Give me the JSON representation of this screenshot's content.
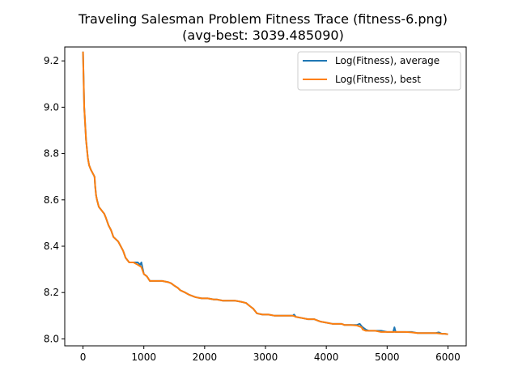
{
  "chart_data": {
    "type": "line",
    "title": "Traveling Salesman Problem Fitness Trace (fitness-6.png)",
    "subtitle": "(avg-best: 3039.485090)",
    "xlabel": "",
    "ylabel": "",
    "xlim": [
      -300,
      6300
    ],
    "ylim": [
      7.97,
      9.26
    ],
    "x_ticks": [
      0,
      1000,
      2000,
      3000,
      4000,
      5000,
      6000
    ],
    "x_tick_labels": [
      "0",
      "1000",
      "2000",
      "3000",
      "4000",
      "5000",
      "6000"
    ],
    "y_ticks": [
      8.0,
      8.2,
      8.4,
      8.6,
      8.8,
      9.0,
      9.2
    ],
    "y_tick_labels": [
      "8.0",
      "8.2",
      "8.4",
      "8.6",
      "8.8",
      "9.0",
      "9.2"
    ],
    "grid": false,
    "legend_position": "top-right",
    "series": [
      {
        "name": "Log(Fitness), average",
        "color": "#1f77b4",
        "x": [
          0,
          20,
          50,
          80,
          100,
          130,
          150,
          170,
          190,
          200,
          215,
          230,
          260,
          290,
          320,
          350,
          380,
          420,
          460,
          500,
          540,
          580,
          620,
          660,
          700,
          760,
          830,
          900,
          940,
          960,
          1000,
          1050,
          1100,
          1200,
          1300,
          1400,
          1450,
          1500,
          1560,
          1600,
          1680,
          1750,
          1850,
          1950,
          2050,
          2150,
          2200,
          2300,
          2400,
          2500,
          2600,
          2680,
          2750,
          2800,
          2860,
          2950,
          3050,
          3150,
          3250,
          3350,
          3450,
          3470,
          3500,
          3600,
          3700,
          3800,
          3850,
          3900,
          4000,
          4100,
          4200,
          4250,
          4300,
          4400,
          4500,
          4550,
          4580,
          4600,
          4650,
          4700,
          4800,
          4900,
          5000,
          5100,
          5120,
          5140,
          5200,
          5300,
          5400,
          5500,
          5600,
          5700,
          5800,
          5850,
          5900,
          5950,
          6000
        ],
        "y": [
          9.24,
          9.0,
          8.86,
          8.78,
          8.75,
          8.73,
          8.72,
          8.71,
          8.7,
          8.66,
          8.62,
          8.6,
          8.57,
          8.56,
          8.55,
          8.54,
          8.52,
          8.49,
          8.47,
          8.44,
          8.43,
          8.42,
          8.4,
          8.38,
          8.35,
          8.33,
          8.33,
          8.33,
          8.32,
          8.33,
          8.28,
          8.27,
          8.25,
          8.25,
          8.25,
          8.245,
          8.24,
          8.23,
          8.22,
          8.21,
          8.2,
          8.19,
          8.18,
          8.175,
          8.175,
          8.17,
          8.17,
          8.165,
          8.165,
          8.165,
          8.16,
          8.155,
          8.14,
          8.13,
          8.11,
          8.105,
          8.105,
          8.1,
          8.1,
          8.1,
          8.1,
          8.105,
          8.095,
          8.09,
          8.085,
          8.085,
          8.08,
          8.075,
          8.07,
          8.065,
          8.065,
          8.065,
          8.06,
          8.06,
          8.06,
          8.065,
          8.055,
          8.05,
          8.04,
          8.035,
          8.035,
          8.035,
          8.03,
          8.03,
          8.05,
          8.03,
          8.03,
          8.03,
          8.03,
          8.025,
          8.025,
          8.025,
          8.025,
          8.028,
          8.022,
          8.022,
          8.02
        ]
      },
      {
        "name": "Log(Fitness), best",
        "color": "#ff7f0e",
        "x": [
          0,
          20,
          50,
          80,
          100,
          130,
          150,
          170,
          190,
          200,
          215,
          230,
          260,
          290,
          320,
          350,
          380,
          420,
          460,
          500,
          540,
          580,
          620,
          660,
          700,
          760,
          830,
          900,
          960,
          1000,
          1050,
          1100,
          1200,
          1300,
          1400,
          1450,
          1500,
          1560,
          1600,
          1680,
          1750,
          1850,
          1950,
          2050,
          2150,
          2200,
          2300,
          2400,
          2500,
          2600,
          2680,
          2750,
          2800,
          2860,
          2950,
          3050,
          3150,
          3250,
          3350,
          3450,
          3500,
          3600,
          3700,
          3800,
          3850,
          3900,
          4000,
          4100,
          4200,
          4250,
          4300,
          4400,
          4500,
          4580,
          4600,
          4650,
          4700,
          4800,
          4900,
          5000,
          5100,
          5200,
          5300,
          5400,
          5500,
          5600,
          5700,
          5800,
          5900,
          5950,
          6000
        ],
        "y": [
          9.24,
          9.0,
          8.86,
          8.78,
          8.75,
          8.73,
          8.72,
          8.71,
          8.7,
          8.66,
          8.62,
          8.6,
          8.57,
          8.56,
          8.55,
          8.54,
          8.52,
          8.49,
          8.47,
          8.44,
          8.43,
          8.42,
          8.4,
          8.38,
          8.35,
          8.33,
          8.33,
          8.32,
          8.31,
          8.28,
          8.27,
          8.25,
          8.25,
          8.25,
          8.245,
          8.24,
          8.23,
          8.22,
          8.21,
          8.2,
          8.19,
          8.18,
          8.175,
          8.175,
          8.17,
          8.17,
          8.165,
          8.165,
          8.165,
          8.16,
          8.155,
          8.14,
          8.13,
          8.11,
          8.105,
          8.105,
          8.1,
          8.1,
          8.1,
          8.1,
          8.095,
          8.09,
          8.085,
          8.085,
          8.08,
          8.075,
          8.07,
          8.065,
          8.065,
          8.065,
          8.06,
          8.06,
          8.058,
          8.05,
          8.04,
          8.035,
          8.035,
          8.035,
          8.03,
          8.03,
          8.03,
          8.03,
          8.03,
          8.028,
          8.025,
          8.025,
          8.025,
          8.025,
          8.022,
          8.022,
          8.02
        ]
      }
    ]
  }
}
